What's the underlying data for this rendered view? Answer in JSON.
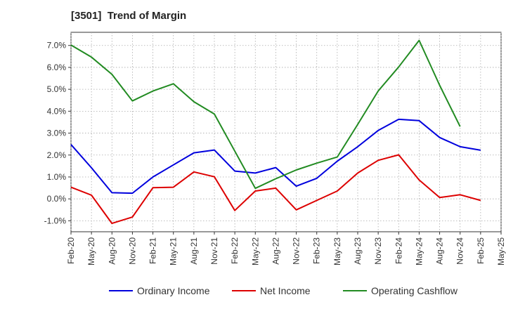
{
  "chart_data": {
    "type": "line",
    "title": "[3501]  Trend of Margin",
    "xlabel": "",
    "ylabel": "",
    "x": [
      "Feb-20",
      "May-20",
      "Aug-20",
      "Nov-20",
      "Feb-21",
      "May-21",
      "Aug-21",
      "Nov-21",
      "Feb-22",
      "May-22",
      "Aug-22",
      "Nov-22",
      "Feb-23",
      "May-23",
      "Aug-23",
      "Nov-23",
      "Feb-24",
      "May-24",
      "Aug-24",
      "Nov-24",
      "Feb-25",
      "May-25"
    ],
    "ylim": [
      -1.5,
      7.6
    ],
    "yticks": [
      -1.0,
      0.0,
      1.0,
      2.0,
      3.0,
      4.0,
      5.0,
      6.0,
      7.0
    ],
    "ytick_labels": [
      "-1.0%",
      "0.0%",
      "1.0%",
      "2.0%",
      "3.0%",
      "4.0%",
      "5.0%",
      "6.0%",
      "7.0%"
    ],
    "grid": true,
    "legend_position": "bottom",
    "series": [
      {
        "name": "Ordinary Income",
        "color": "#0000dd",
        "values": [
          2.48,
          1.42,
          0.28,
          0.26,
          1.0,
          1.55,
          2.1,
          2.23,
          1.27,
          1.18,
          1.43,
          0.58,
          0.94,
          1.72,
          2.38,
          3.12,
          3.63,
          3.57,
          2.8,
          2.38,
          2.22,
          null
        ]
      },
      {
        "name": "Net Income",
        "color": "#dd0000",
        "values": [
          0.53,
          0.17,
          -1.12,
          -0.83,
          0.51,
          0.53,
          1.23,
          1.01,
          -0.53,
          0.36,
          0.49,
          -0.5,
          -0.07,
          0.36,
          1.18,
          1.76,
          2.01,
          0.86,
          0.06,
          0.19,
          -0.07,
          null
        ]
      },
      {
        "name": "Operating Cashflow",
        "color": "#228b22",
        "values": [
          7.02,
          6.47,
          5.68,
          4.47,
          4.92,
          5.25,
          4.43,
          3.87,
          2.18,
          0.48,
          0.92,
          1.32,
          1.63,
          1.91,
          3.4,
          4.92,
          6.02,
          7.23,
          5.18,
          3.3,
          null,
          null
        ]
      }
    ]
  }
}
